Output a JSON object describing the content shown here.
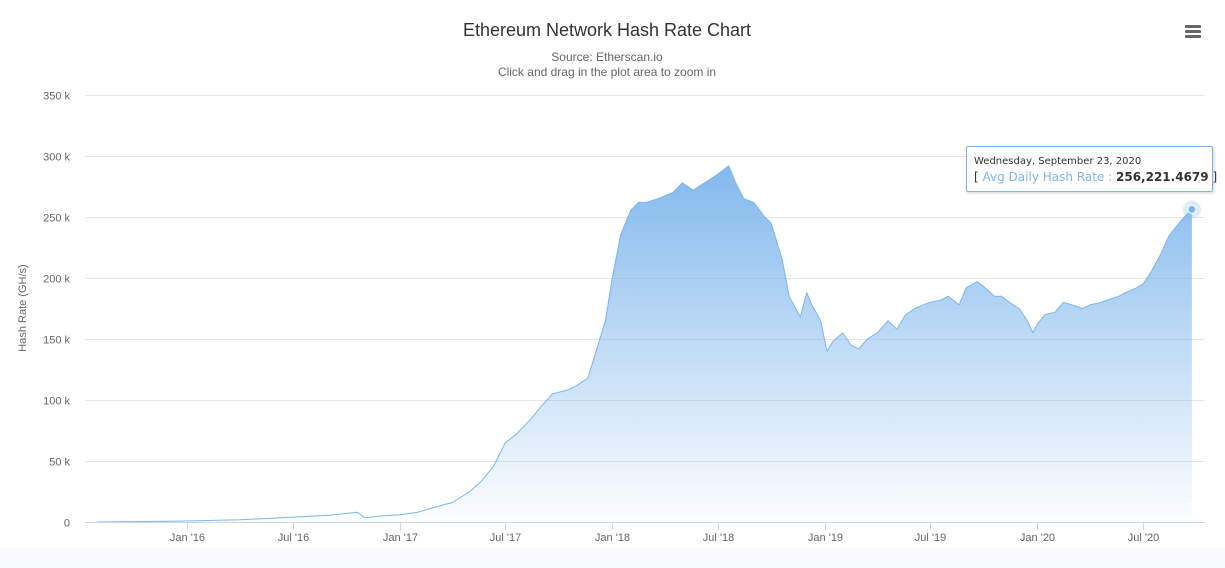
{
  "chart_data": {
    "type": "area",
    "title": "Ethereum Network Hash Rate Chart",
    "subtitle_lines": [
      "Source: Etherscan.io",
      "Click and drag in the plot area to zoom in"
    ],
    "ylabel": "Hash Rate (GH/s)",
    "ylim": [
      0,
      350000
    ],
    "y_ticks": [
      0,
      50000,
      100000,
      150000,
      200000,
      250000,
      300000,
      350000
    ],
    "y_tick_labels": [
      "0",
      "50 k",
      "100 k",
      "150 k",
      "200 k",
      "250 k",
      "300 k",
      "350 k"
    ],
    "xlim": [
      "2015-07-30",
      "2020-09-23"
    ],
    "x_ticks": [
      "2016-01-01",
      "2016-07-01",
      "2017-01-01",
      "2017-07-01",
      "2018-01-01",
      "2018-07-01",
      "2019-01-01",
      "2019-07-01",
      "2020-01-01",
      "2020-07-01"
    ],
    "x_tick_labels": [
      "Jan '16",
      "Jul '16",
      "Jan '17",
      "Jul '17",
      "Jan '18",
      "Jul '18",
      "Jan '19",
      "Jul '19",
      "Jan '20",
      "Jul '20"
    ],
    "grid": true,
    "legend": "none",
    "color": "#7cb5ec",
    "series": [
      {
        "name": "Avg Daily Hash Rate",
        "x": [
          "2015-07-30",
          "2015-10-01",
          "2016-01-01",
          "2016-04-01",
          "2016-07-01",
          "2016-09-01",
          "2016-10-20",
          "2016-11-01",
          "2016-12-01",
          "2017-01-01",
          "2017-02-01",
          "2017-03-01",
          "2017-04-01",
          "2017-05-01",
          "2017-05-20",
          "2017-06-10",
          "2017-07-01",
          "2017-07-20",
          "2017-08-15",
          "2017-09-01",
          "2017-09-20",
          "2017-10-15",
          "2017-11-01",
          "2017-11-20",
          "2017-12-01",
          "2017-12-20",
          "2018-01-01",
          "2018-01-15",
          "2018-02-01",
          "2018-02-15",
          "2018-03-01",
          "2018-03-20",
          "2018-04-15",
          "2018-05-01",
          "2018-05-20",
          "2018-06-15",
          "2018-07-01",
          "2018-07-20",
          "2018-08-01",
          "2018-08-15",
          "2018-09-01",
          "2018-09-20",
          "2018-10-01",
          "2018-10-20",
          "2018-11-01",
          "2018-11-20",
          "2018-12-01",
          "2018-12-10",
          "2018-12-25",
          "2019-01-05",
          "2019-01-15",
          "2019-02-01",
          "2019-02-15",
          "2019-03-01",
          "2019-03-15",
          "2019-04-01",
          "2019-04-20",
          "2019-05-05",
          "2019-05-20",
          "2019-06-05",
          "2019-06-20",
          "2019-07-01",
          "2019-07-20",
          "2019-08-01",
          "2019-08-20",
          "2019-09-01",
          "2019-09-20",
          "2019-10-01",
          "2019-10-20",
          "2019-11-01",
          "2019-11-20",
          "2019-12-01",
          "2019-12-15",
          "2019-12-25",
          "2020-01-01",
          "2020-01-15",
          "2020-02-01",
          "2020-02-15",
          "2020-03-01",
          "2020-03-20",
          "2020-04-01",
          "2020-04-20",
          "2020-05-01",
          "2020-05-20",
          "2020-06-01",
          "2020-06-20",
          "2020-07-01",
          "2020-07-15",
          "2020-08-01",
          "2020-08-15",
          "2020-09-01",
          "2020-09-10",
          "2020-09-23"
        ],
        "values": [
          0,
          300,
          800,
          1800,
          4000,
          5500,
          8000,
          3500,
          5000,
          6000,
          8000,
          12000,
          16000,
          25000,
          33000,
          45000,
          65000,
          72000,
          85000,
          95000,
          105000,
          108000,
          112000,
          118000,
          135000,
          165000,
          200000,
          235000,
          255000,
          262000,
          262000,
          265000,
          270000,
          278000,
          272000,
          280000,
          285000,
          292000,
          278000,
          265000,
          262000,
          250000,
          245000,
          215000,
          185000,
          168000,
          188000,
          178000,
          165000,
          140000,
          148000,
          155000,
          145000,
          142000,
          150000,
          155000,
          165000,
          158000,
          170000,
          175000,
          178000,
          180000,
          182000,
          185000,
          178000,
          192000,
          197000,
          193000,
          185000,
          185000,
          178000,
          175000,
          165000,
          155000,
          162000,
          170000,
          172000,
          180000,
          178000,
          175000,
          178000,
          180000,
          182000,
          185000,
          188000,
          192000,
          195000,
          205000,
          220000,
          235000,
          245000,
          250000,
          256221
        ]
      }
    ]
  },
  "tooltip": {
    "date": "Wednesday, September 23, 2020",
    "open_bracket": "[",
    "series_name": "Avg Daily Hash Rate",
    "separator": ":",
    "value": "256,221.4679",
    "close_bracket": "]"
  },
  "icons": {
    "menu": "hamburger-menu-icon"
  }
}
